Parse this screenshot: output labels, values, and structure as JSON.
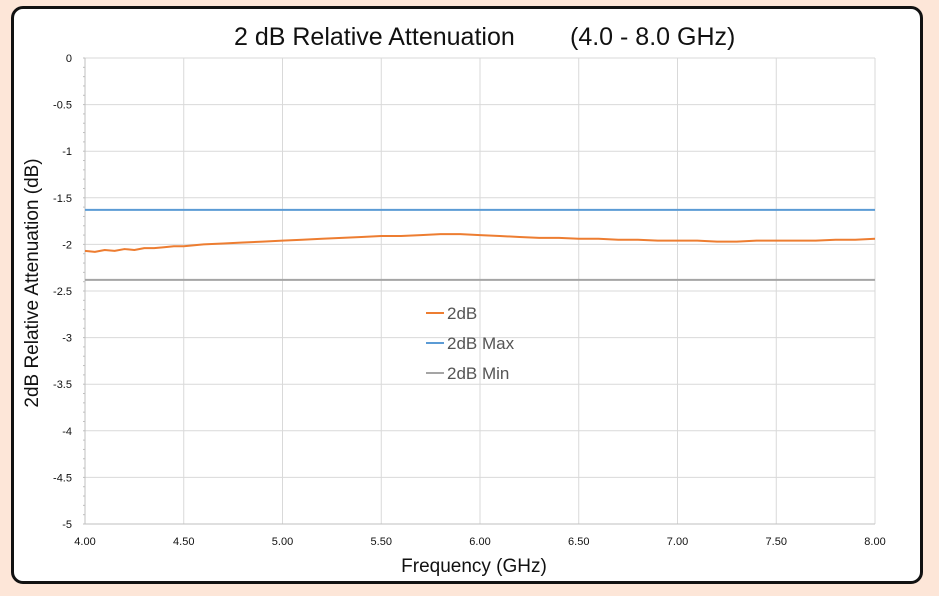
{
  "chart_data": {
    "type": "line",
    "title": "2 dB Relative Attenuation",
    "subtitle": "(4.0 - 8.0 GHz)",
    "xlabel": "Frequency (GHz)",
    "ylabel": "2dB Relative Attenuation (dB)",
    "xlim": [
      4.0,
      8.0
    ],
    "ylim": [
      -5,
      0
    ],
    "x_ticks": [
      "4.00",
      "4.50",
      "5.00",
      "5.50",
      "6.00",
      "6.50",
      "7.00",
      "7.50",
      "8.00"
    ],
    "y_ticks": [
      "0",
      "-0.5",
      "-1",
      "-1.5",
      "-2",
      "-2.5",
      "-3",
      "-3.5",
      "-4",
      "-4.5",
      "-5"
    ],
    "grid": true,
    "legend_position": "center",
    "series": [
      {
        "name": "2dB",
        "color": "#ED7D31",
        "x": [
          4.0,
          4.05,
          4.1,
          4.15,
          4.2,
          4.25,
          4.3,
          4.35,
          4.4,
          4.45,
          4.5,
          4.6,
          4.7,
          4.8,
          4.9,
          5.0,
          5.1,
          5.2,
          5.3,
          5.4,
          5.5,
          5.6,
          5.7,
          5.8,
          5.9,
          6.0,
          6.1,
          6.2,
          6.3,
          6.4,
          6.5,
          6.6,
          6.7,
          6.8,
          6.9,
          7.0,
          7.1,
          7.2,
          7.3,
          7.4,
          7.5,
          7.6,
          7.7,
          7.8,
          7.9,
          8.0
        ],
        "y": [
          -2.07,
          -2.08,
          -2.06,
          -2.07,
          -2.05,
          -2.06,
          -2.04,
          -2.04,
          -2.03,
          -2.02,
          -2.02,
          -2.0,
          -1.99,
          -1.98,
          -1.97,
          -1.96,
          -1.95,
          -1.94,
          -1.93,
          -1.92,
          -1.91,
          -1.91,
          -1.9,
          -1.89,
          -1.89,
          -1.9,
          -1.91,
          -1.92,
          -1.93,
          -1.93,
          -1.94,
          -1.94,
          -1.95,
          -1.95,
          -1.96,
          -1.96,
          -1.96,
          -1.97,
          -1.97,
          -1.96,
          -1.96,
          -1.96,
          -1.96,
          -1.95,
          -1.95,
          -1.94
        ]
      },
      {
        "name": "2dB Max",
        "color": "#5B9BD5",
        "x": [
          4.0,
          8.0
        ],
        "y": [
          -1.63,
          -1.63
        ]
      },
      {
        "name": "2dB Min",
        "color": "#A5A5A5",
        "x": [
          4.0,
          8.0
        ],
        "y": [
          -2.38,
          -2.38
        ]
      }
    ]
  }
}
